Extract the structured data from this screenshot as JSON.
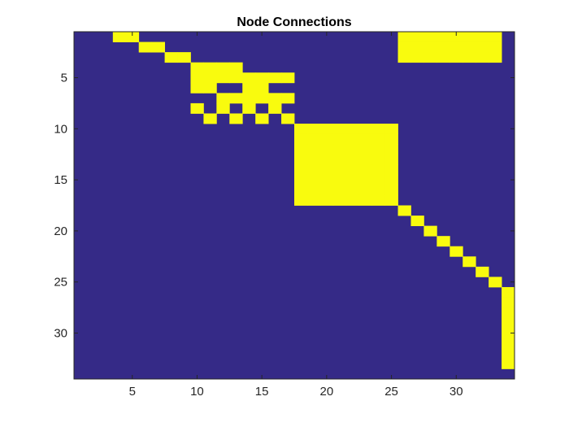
{
  "chart_data": {
    "type": "heatmap",
    "title": "Node Connections",
    "xlabel": "",
    "ylabel": "",
    "n_rows": 34,
    "n_cols": 34,
    "xlim": [
      0.5,
      34.5
    ],
    "ylim": [
      0.5,
      34.5
    ],
    "y_reversed": true,
    "x_ticks": [
      5,
      10,
      15,
      20,
      25,
      30
    ],
    "y_ticks": [
      5,
      10,
      15,
      20,
      25,
      30
    ],
    "x_tick_labels": [
      "5",
      "10",
      "15",
      "20",
      "25",
      "30"
    ],
    "y_tick_labels": [
      "5",
      "10",
      "15",
      "20",
      "25",
      "30"
    ],
    "grid": false,
    "colors": {
      "zero": "#352a87",
      "one": "#f9fb0e",
      "axis": "#262626",
      "title": "#000000"
    },
    "values_encoding": "binary matrix: 1 = connected (yellow), 0 = not connected (dark blue)",
    "ones": [
      {
        "row": 1,
        "cols": [
          4,
          5,
          26,
          27,
          28,
          29,
          30,
          31,
          32,
          33
        ]
      },
      {
        "row": 2,
        "cols": [
          6,
          7,
          26,
          27,
          28,
          29,
          30,
          31,
          32,
          33
        ]
      },
      {
        "row": 3,
        "cols": [
          8,
          9,
          26,
          27,
          28,
          29,
          30,
          31,
          32,
          33
        ]
      },
      {
        "row": 4,
        "cols": [
          10,
          11,
          12,
          13
        ]
      },
      {
        "row": 5,
        "cols": [
          10,
          11,
          12,
          13,
          14,
          15,
          16,
          17
        ]
      },
      {
        "row": 6,
        "cols": [
          10,
          11,
          14,
          15
        ]
      },
      {
        "row": 7,
        "cols": [
          12,
          13,
          14,
          15,
          16,
          17
        ]
      },
      {
        "row": 8,
        "cols": [
          10,
          12,
          14,
          16
        ]
      },
      {
        "row": 9,
        "cols": [
          11,
          13,
          15,
          17
        ]
      },
      {
        "row": 10,
        "cols": [
          18,
          19,
          20,
          21,
          22,
          23,
          24,
          25
        ]
      },
      {
        "row": 11,
        "cols": [
          18,
          19,
          20,
          21,
          22,
          23,
          24,
          25
        ]
      },
      {
        "row": 12,
        "cols": [
          18,
          19,
          20,
          21,
          22,
          23,
          24,
          25
        ]
      },
      {
        "row": 13,
        "cols": [
          18,
          19,
          20,
          21,
          22,
          23,
          24,
          25
        ]
      },
      {
        "row": 14,
        "cols": [
          18,
          19,
          20,
          21,
          22,
          23,
          24,
          25
        ]
      },
      {
        "row": 15,
        "cols": [
          18,
          19,
          20,
          21,
          22,
          23,
          24,
          25
        ]
      },
      {
        "row": 16,
        "cols": [
          18,
          19,
          20,
          21,
          22,
          23,
          24,
          25
        ]
      },
      {
        "row": 17,
        "cols": [
          18,
          19,
          20,
          21,
          22,
          23,
          24,
          25
        ]
      },
      {
        "row": 18,
        "cols": [
          26
        ]
      },
      {
        "row": 19,
        "cols": [
          27
        ]
      },
      {
        "row": 20,
        "cols": [
          28
        ]
      },
      {
        "row": 21,
        "cols": [
          29
        ]
      },
      {
        "row": 22,
        "cols": [
          30
        ]
      },
      {
        "row": 23,
        "cols": [
          31
        ]
      },
      {
        "row": 24,
        "cols": [
          32
        ]
      },
      {
        "row": 25,
        "cols": [
          33
        ]
      },
      {
        "row": 26,
        "cols": [
          34
        ]
      },
      {
        "row": 27,
        "cols": [
          34
        ]
      },
      {
        "row": 28,
        "cols": [
          34
        ]
      },
      {
        "row": 29,
        "cols": [
          34
        ]
      },
      {
        "row": 30,
        "cols": [
          34
        ]
      },
      {
        "row": 31,
        "cols": [
          34
        ]
      },
      {
        "row": 32,
        "cols": [
          34
        ]
      },
      {
        "row": 33,
        "cols": [
          34
        ]
      }
    ]
  }
}
